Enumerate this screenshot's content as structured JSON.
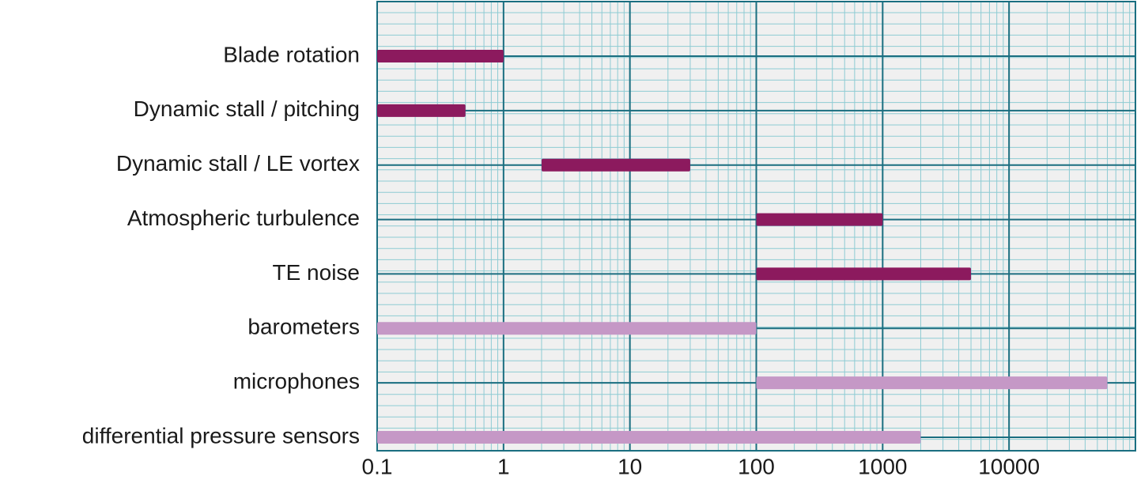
{
  "chart_data": {
    "type": "rangebar",
    "categories": [
      "Blade rotation",
      "Dynamic stall / pitching",
      "Dynamic stall / LE vortex",
      "Atmospheric turbulence",
      "TE noise",
      "barometers",
      "microphones",
      "differential pressure sensors"
    ],
    "start": [
      0.1,
      0.1,
      2,
      100,
      100,
      0.1,
      100,
      0.1
    ],
    "end": [
      1,
      0.5,
      30,
      1000,
      5000,
      100,
      60000,
      2000
    ],
    "colors": [
      "#8c1a5e",
      "#8c1a5e",
      "#8c1a5e",
      "#8c1a5e",
      "#8c1a5e",
      "#c598c6",
      "#c598c6",
      "#c598c6"
    ],
    "xlim": [
      0.1,
      100000
    ],
    "xticks": [
      0.1,
      1,
      10,
      100,
      1000,
      10000
    ],
    "log_x": true,
    "grid": true,
    "minor_grid": true
  }
}
